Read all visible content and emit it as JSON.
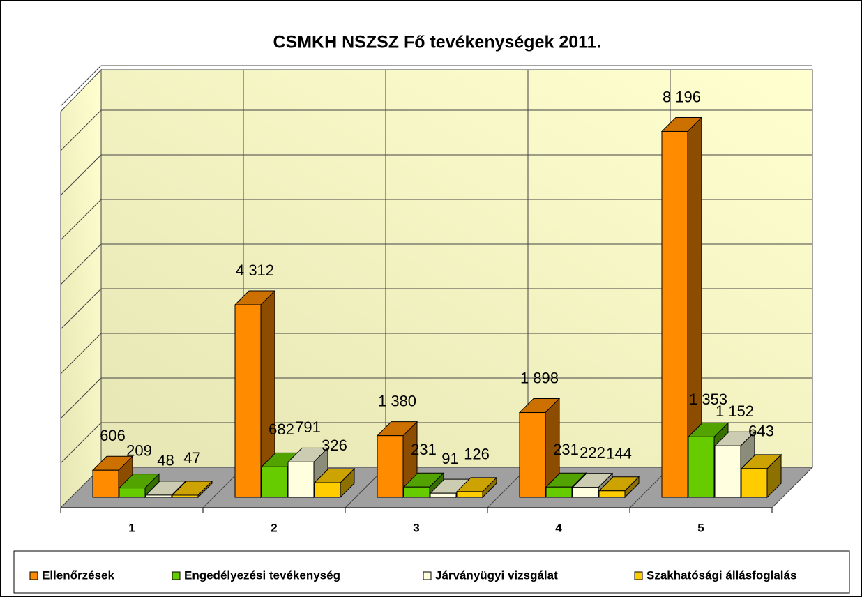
{
  "chart_data": {
    "type": "bar3d",
    "title": "CSMKH NSZSZ Fő tevékenységek 2011.",
    "categories": [
      "1",
      "2",
      "3",
      "4",
      "5"
    ],
    "series": [
      {
        "name": "Ellenőrzések",
        "color": "#ff8c00",
        "values": [
          606,
          4312,
          1380,
          1898,
          8196
        ],
        "value_labels": [
          "606",
          "4 312",
          "1 380",
          "1 898",
          "8 196"
        ]
      },
      {
        "name": "Engedélyezési tevékenység",
        "color": "#66cc00",
        "values": [
          209,
          682,
          231,
          231,
          1353
        ],
        "value_labels": [
          "209",
          "682",
          "231",
          "231",
          "1 353"
        ]
      },
      {
        "name": "Járványügyi vizsgálat",
        "color": "#ffffe0",
        "values": [
          48,
          791,
          91,
          222,
          1152
        ],
        "value_labels": [
          "48",
          "791",
          "91",
          "222",
          "1 152"
        ]
      },
      {
        "name": "Szakhatósági állásfoglalás",
        "color": "#ffcc00",
        "values": [
          47,
          326,
          126,
          144,
          643
        ],
        "value_labels": [
          "47",
          "326",
          "126",
          "144",
          "643"
        ]
      }
    ],
    "ylim": [
      0,
      9000
    ],
    "yticks": [
      0,
      1000,
      2000,
      3000,
      4000,
      5000,
      6000,
      7000,
      8000,
      9000
    ],
    "grid": true,
    "legend": "bottom"
  }
}
